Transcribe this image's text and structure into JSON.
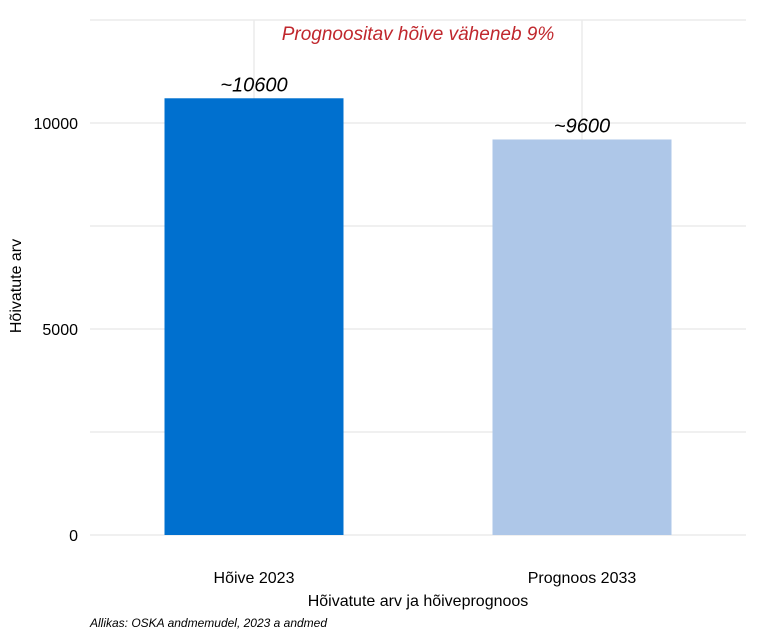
{
  "chart_data": {
    "type": "bar",
    "categories": [
      "Hõive 2023",
      "Prognoos 2033"
    ],
    "values": [
      10600,
      9600
    ],
    "data_labels": [
      "~10600",
      "~9600"
    ],
    "colors": [
      "#0070CF",
      "#AEC7E8"
    ],
    "annotation": "Prognoositav hõive väheneb 9%",
    "annotation_color": "#C0272D",
    "xlabel": "Hõivatute arv ja hõiveprognoos",
    "ylabel": "Hõivatute arv",
    "ylim": [
      0,
      12500
    ],
    "yticks": [
      0,
      5000,
      10000
    ],
    "grid": true
  },
  "caption": "Allikas: OSKA andmemudel, 2023 a andmed"
}
